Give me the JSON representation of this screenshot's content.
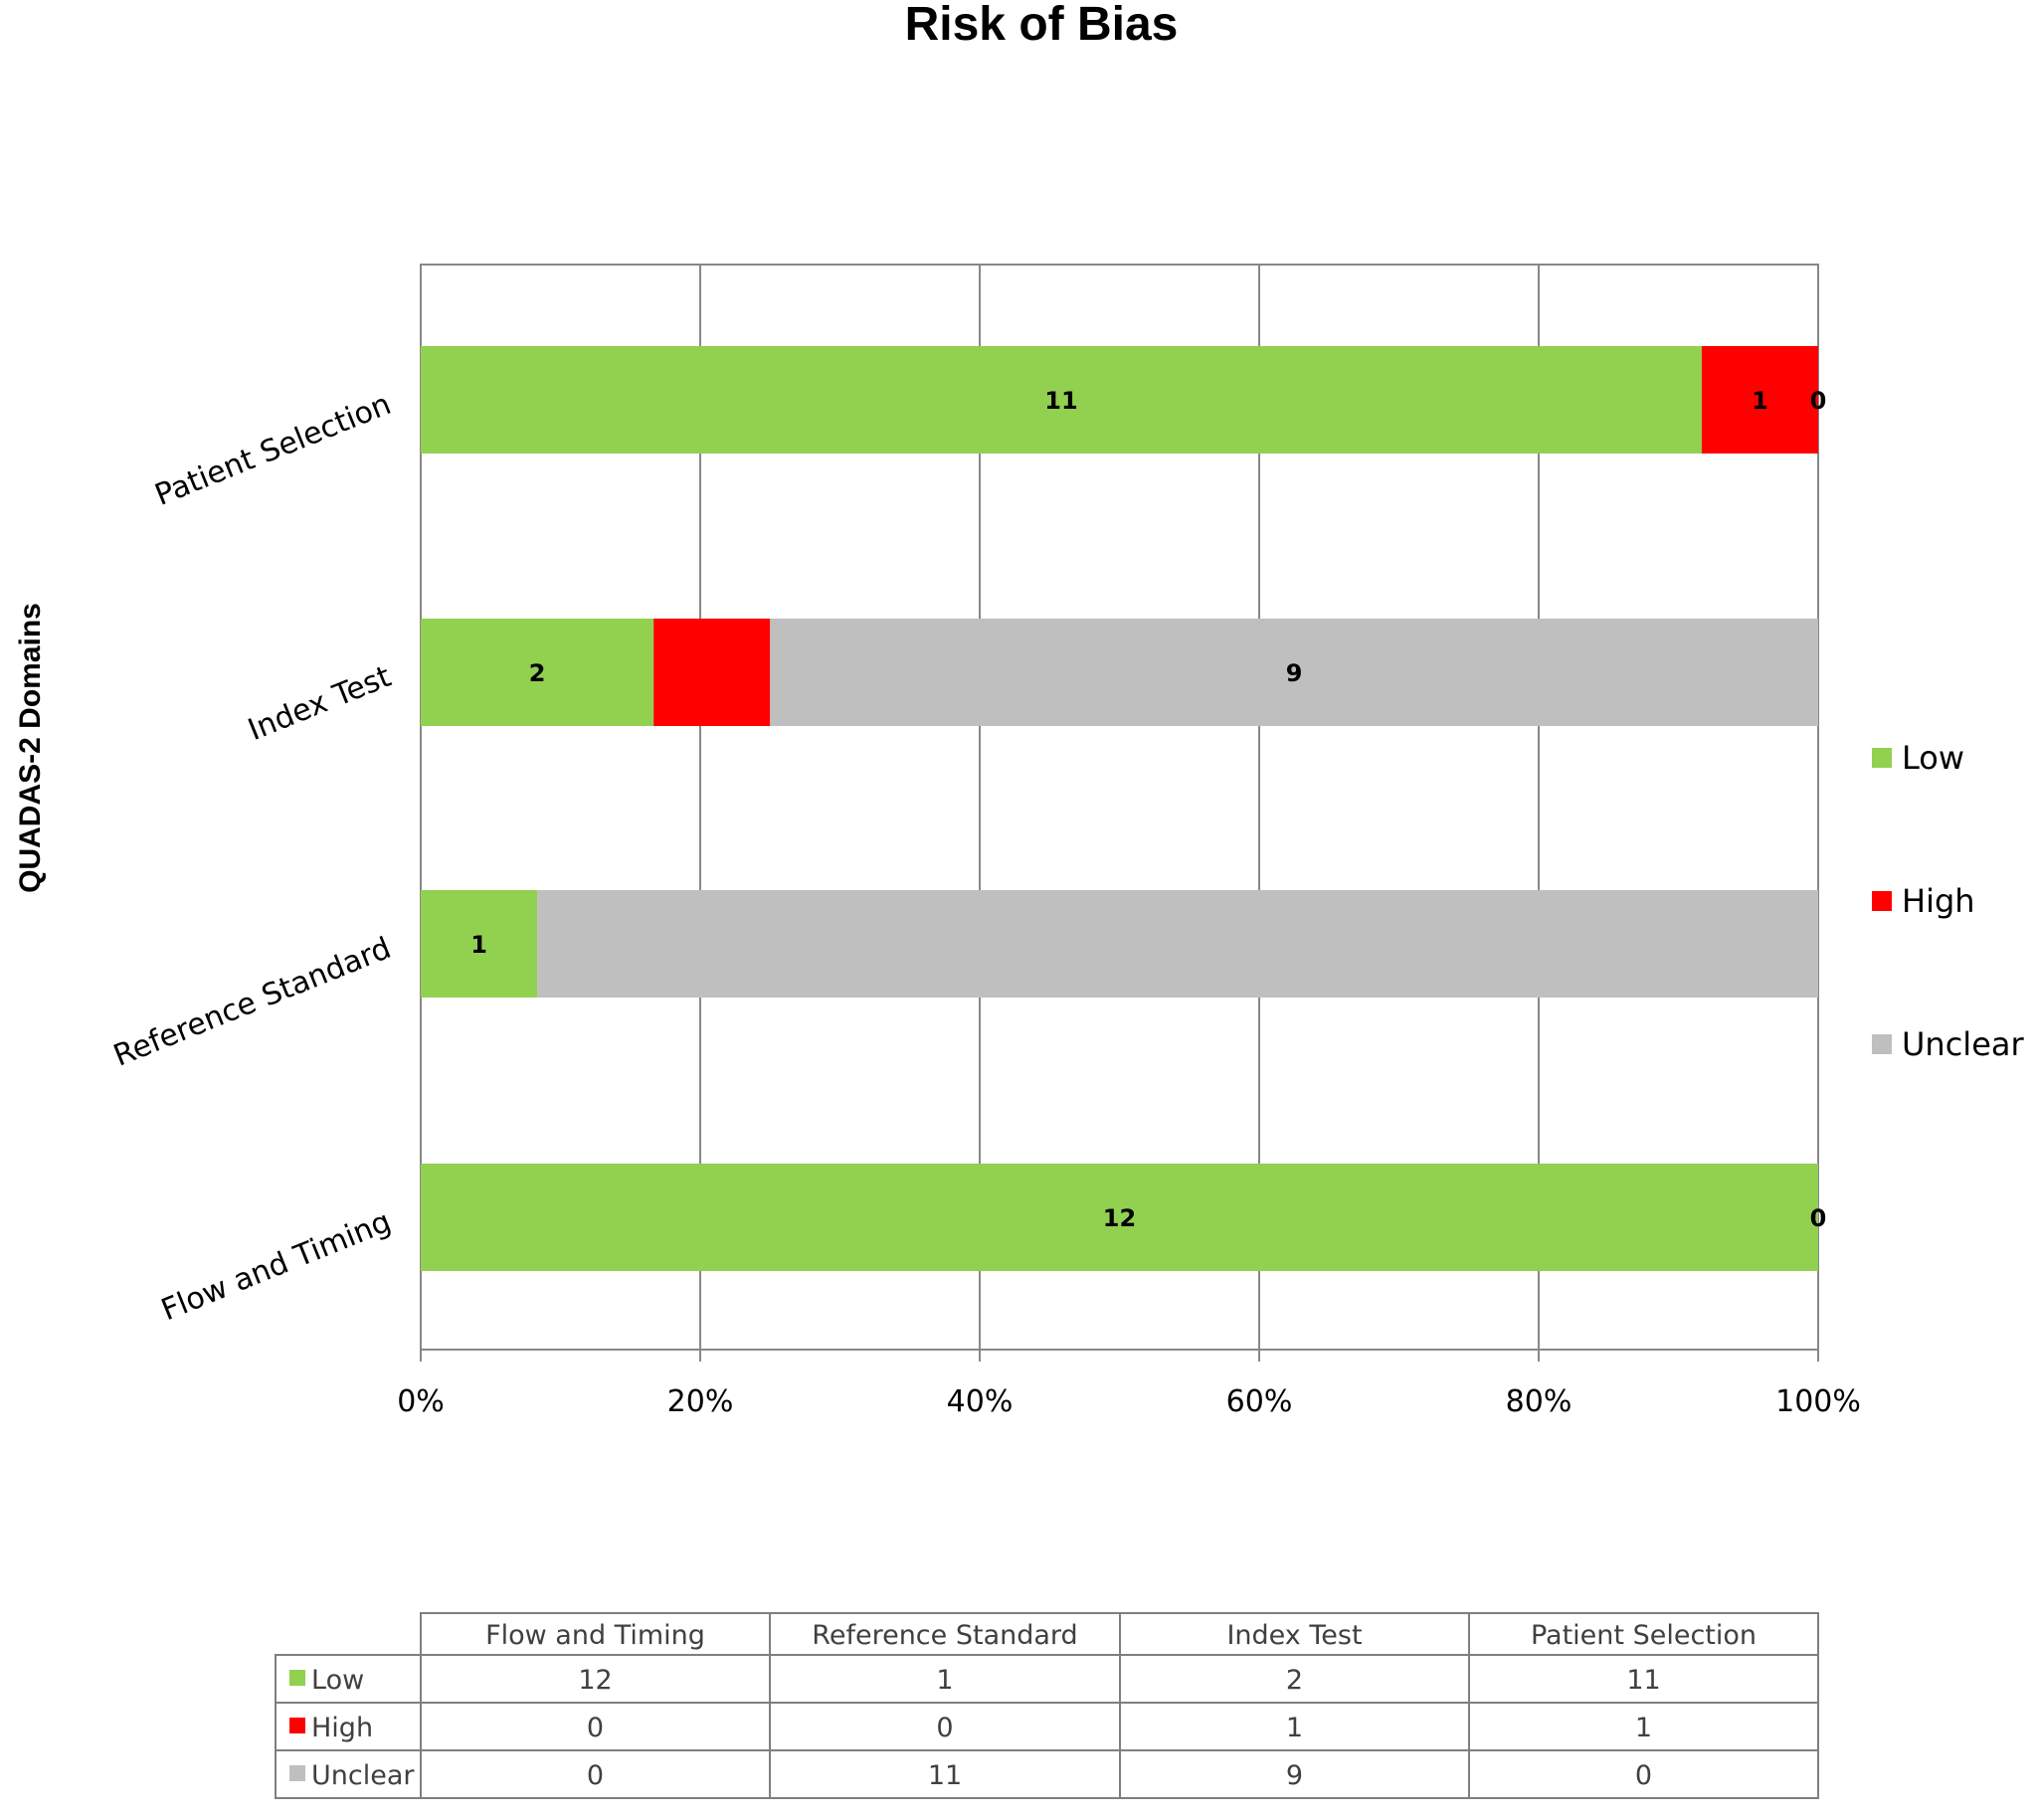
{
  "chart_data": {
    "type": "bar",
    "orientation": "horizontal",
    "stacked": "percent",
    "title": "Risk of Bias",
    "ylabel": "QUADAS-2 Domains",
    "xlabel": "",
    "xlim": [
      0,
      100
    ],
    "x_ticks": [
      "0%",
      "20%",
      "40%",
      "60%",
      "80%",
      "100%"
    ],
    "grid": true,
    "legend_position": "right",
    "categories": [
      "Patient Selection",
      "Index Test",
      "Reference Standard",
      "Flow and Timing"
    ],
    "series": [
      {
        "name": "Low",
        "color": "#92d050",
        "values": [
          11,
          2,
          1,
          12
        ]
      },
      {
        "name": "High",
        "color": "#ff0000",
        "values": [
          1,
          1,
          0,
          0
        ]
      },
      {
        "name": "Unclear",
        "color": "#bfbfbf",
        "values": [
          0,
          9,
          11,
          0
        ]
      }
    ],
    "data_labels": [
      {
        "category": "Patient Selection",
        "series": "Low",
        "text": "11"
      },
      {
        "category": "Patient Selection",
        "series": "High",
        "text": "1"
      },
      {
        "category": "Patient Selection",
        "series": "Unclear",
        "text": "0"
      },
      {
        "category": "Index Test",
        "series": "Low",
        "text": "2"
      },
      {
        "category": "Index Test",
        "series": "Unclear",
        "text": "9"
      },
      {
        "category": "Reference Standard",
        "series": "Low",
        "text": "1"
      },
      {
        "category": "Flow and Timing",
        "series": "Low",
        "text": "12"
      },
      {
        "category": "Flow and Timing",
        "series": "Unclear",
        "text": "0"
      }
    ],
    "data_table": {
      "columns": [
        "Flow and Timing",
        "Reference Standard",
        "Index Test",
        "Patient Selection"
      ],
      "rows": [
        {
          "label": "Low",
          "color": "#92d050",
          "values": [
            "12",
            "1",
            "2",
            "11"
          ]
        },
        {
          "label": "High",
          "color": "#ff0000",
          "values": [
            "0",
            "0",
            "1",
            "1"
          ]
        },
        {
          "label": "Unclear",
          "color": "#bfbfbf",
          "values": [
            "0",
            "11",
            "9",
            "0"
          ]
        }
      ]
    }
  }
}
